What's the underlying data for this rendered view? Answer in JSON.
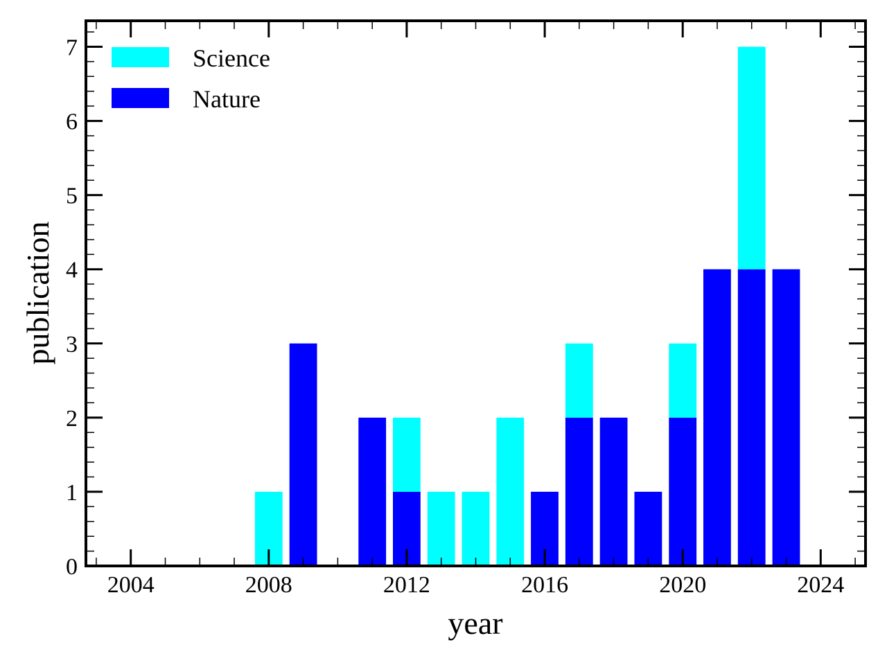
{
  "chart_data": {
    "type": "bar",
    "stacked": true,
    "title": "",
    "xlabel": "year",
    "ylabel": "publication",
    "xlim": [
      2002.7,
      2025.3
    ],
    "ylim": [
      0,
      7.35
    ],
    "x_major_ticks": [
      2004,
      2008,
      2012,
      2016,
      2020,
      2024
    ],
    "x_minor_ticks": [
      2003,
      2005,
      2006,
      2007,
      2009,
      2010,
      2011,
      2013,
      2014,
      2015,
      2017,
      2018,
      2019,
      2021,
      2022,
      2023,
      2025
    ],
    "y_major_ticks": [
      0,
      1,
      2,
      3,
      4,
      5,
      6,
      7
    ],
    "y_minor_step": 0.2,
    "tick_direction": "in",
    "grid": false,
    "legend_position": "top-left",
    "legend_order": [
      "Science",
      "Nature"
    ],
    "x": [
      2008,
      2009,
      2011,
      2012,
      2013,
      2014,
      2015,
      2016,
      2017,
      2018,
      2019,
      2020,
      2021,
      2022,
      2023
    ],
    "bar_width": 0.8,
    "series": [
      {
        "name": "Nature",
        "color": "#0000ff",
        "values": [
          0,
          3,
          2,
          1,
          0,
          0,
          0,
          1,
          2,
          2,
          1,
          2,
          4,
          4,
          4
        ]
      },
      {
        "name": "Science",
        "color": "#00ffff",
        "values": [
          1,
          0,
          0,
          1,
          1,
          1,
          2,
          0,
          1,
          0,
          0,
          1,
          0,
          3,
          0
        ]
      }
    ]
  }
}
